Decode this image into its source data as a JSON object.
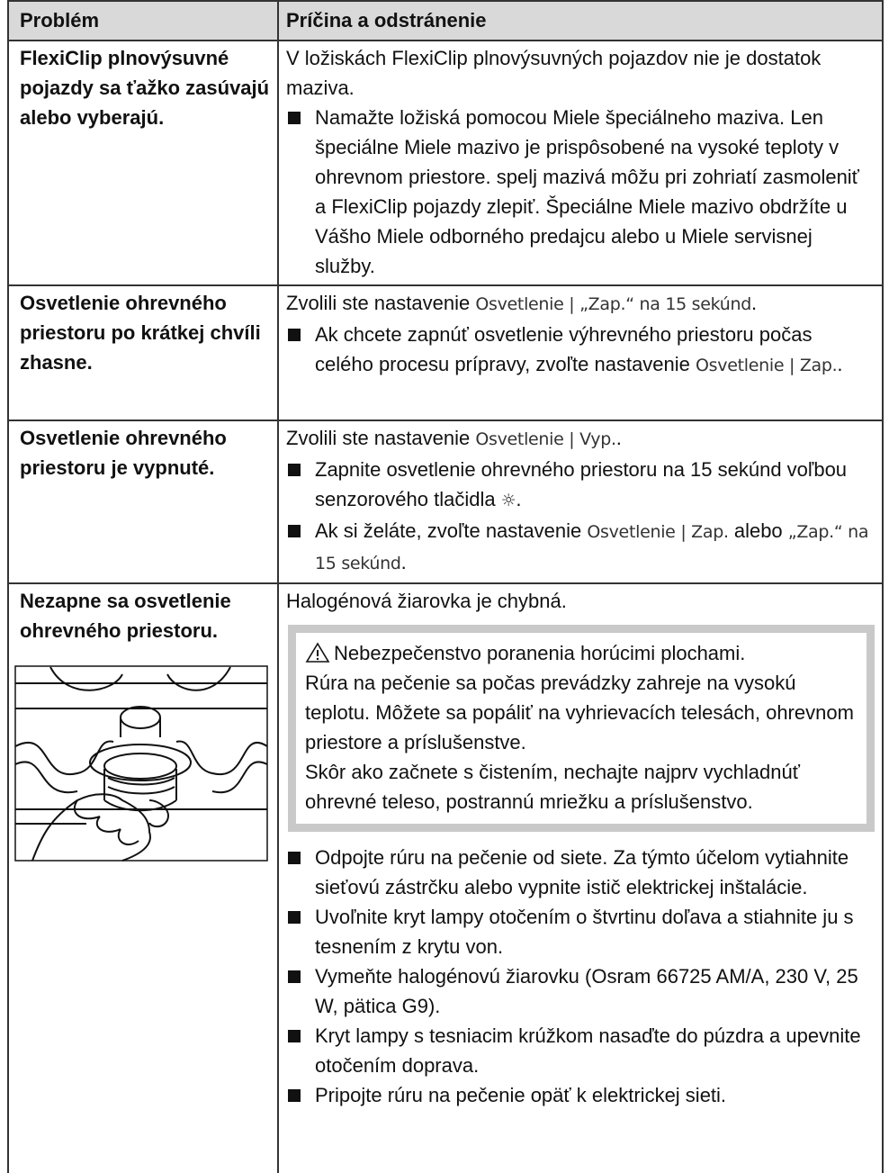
{
  "table": {
    "header": [
      "Problém",
      "Príčina a odstránenie"
    ],
    "rows": [
      {
        "problem": "FlexiClip plnovýsuvné pojazdy sa ťažko zasúvajú alebo vyberajú.",
        "cause": [
          "V ložiskách FlexiClip plnovýsuvných pojazdov nie je dostatok maziva."
        ],
        "steps": [
          [
            "Namažte ložiská pomocou Miele špeciálneho maziva. Len špeciálne Miele mazivo je prispôsobené na vysoké teploty v ohrevnom priestore. spelj mazivá môžu pri zohriatí zasmoleniť a FlexiClip pojazdy zlepiť. Špeciálne Miele mazivo obdržíte u Vášho Miele odborného predajcu alebo u Miele servisnej služby."
          ]
        ]
      },
      {
        "problem": "Osvetlenie ohrevného priestoru po krátkej chvíli zhasne.",
        "cause": [
          "Zvolili ste nastavenie ",
          "Osvetlenie | „Zap.“ na 15 sekúnd",
          "."
        ],
        "steps": [
          [
            "Ak chcete zapnúť osvetlenie výhrevného priestoru počas celého procesu prípravy, zvoľte nastavenie ",
            "Osvetlenie | Zap.",
            "."
          ]
        ]
      },
      {
        "problem": "Osvetlenie ohrevného priestoru je vypnuté.",
        "cause": [
          "Zvolili ste nastavenie ",
          "Osvetlenie | Vyp.",
          "."
        ],
        "steps": [
          [
            "Zapnite osvetlenie ohrevného priestoru na 15 sekúnd voľbou senzorového tlačidla ",
            "☼",
            "."
          ],
          [
            "Ak si želáte, zvoľte nastavenie ",
            "Osvetlenie | Zap.",
            " alebo ",
            "„Zap.“ na 15 sekúnd",
            "."
          ]
        ]
      },
      {
        "problem": "Nezapne sa osvetlenie ohrevného priestoru.",
        "cause": [
          "Halogénová žiarovka je chybná."
        ],
        "warning": {
          "title": "Nebezpečenstvo poranenia horúcimi plochami.",
          "paragraphs": [
            "Rúra na pečenie sa počas prevádzky zahreje na vysokú teplotu. Môžete sa popáliť na vyhrievacích telesách, ohrevnom priestore a príslušenstve.",
            "Skôr ako začnete s čistením, nechajte najprv vychladnúť ohrevné teleso, postrannú mriežku a príslušenstvo."
          ]
        },
        "steps": [
          [
            "Odpojte rúru na pečenie od siete. Za týmto účelom vytiahnite sieťovú zástrčku alebo vypnite istič elektrickej inštalácie."
          ],
          [
            "Uvoľnite kryt lampy otočením o štvrtinu doľava a stiahnite ju s tesnením z krytu von."
          ],
          [
            "Vymeňte halogénovú žiarovku (Osram 66725 AM/A, 230 V, 25 W, pätica G9)."
          ],
          [
            "Kryt lampy s tesniacim krúžkom nasaďte do púzdra a upevnite otočením doprava."
          ],
          [
            "Pripojte rúru na pečenie opäť k elektrickej sieti."
          ]
        ]
      }
    ]
  }
}
